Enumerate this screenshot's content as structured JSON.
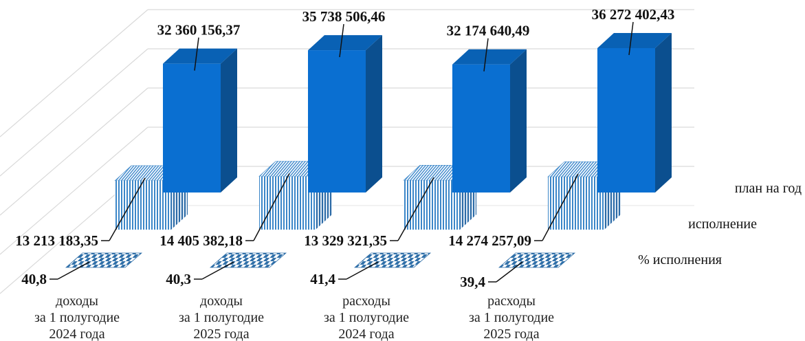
{
  "chart_data": {
    "type": "bar",
    "categories": [
      [
        "доходы",
        "за 1 полугодие",
        "2024 года"
      ],
      [
        "доходы",
        "за 1 полугодие",
        "2025 года"
      ],
      [
        "расходы",
        "за 1 полугодие",
        "2024 года"
      ],
      [
        "расходы",
        "за 1 полугодие",
        "2025 года"
      ]
    ],
    "series": [
      {
        "name": "план на год",
        "values": [
          32360156.37,
          35738506.46,
          32174640.49,
          36272402.43
        ],
        "labels": [
          "32 360 156,37",
          "35 738 506,46",
          "32 174 640,49",
          "36 272 402,43"
        ],
        "color": "#0a6fd1"
      },
      {
        "name": "исполнение",
        "values": [
          13213183.35,
          14405382.18,
          13329321.35,
          14274257.09
        ],
        "labels": [
          "13 213 183,35",
          "14 405 382,18",
          "13 329 321,35",
          "14 274 257,09"
        ],
        "color": "#3b86c8"
      },
      {
        "name": "% исполнения",
        "values": [
          40.8,
          40.3,
          41.4,
          39.4
        ],
        "labels": [
          "40,8",
          "40,3",
          "41,4",
          "39,4"
        ],
        "color": "#2f6fa8"
      }
    ],
    "ylim": [
      0,
      40000000
    ],
    "grid": true,
    "legend": "right"
  }
}
